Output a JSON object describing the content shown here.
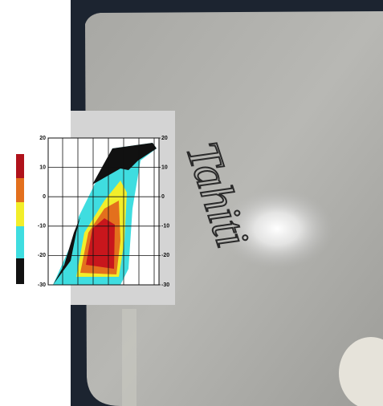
{
  "image": {
    "handwriting": "Tahiti"
  },
  "chart_data": {
    "type": "heatmap",
    "ylim": [
      -30,
      20
    ],
    "yticks": [
      20,
      10,
      0,
      -10,
      -20,
      -30
    ],
    "y2lim": [
      -30,
      20
    ],
    "y2ticks": [
      20,
      10,
      0,
      -10,
      -20,
      -30
    ],
    "grid": true
  }
}
